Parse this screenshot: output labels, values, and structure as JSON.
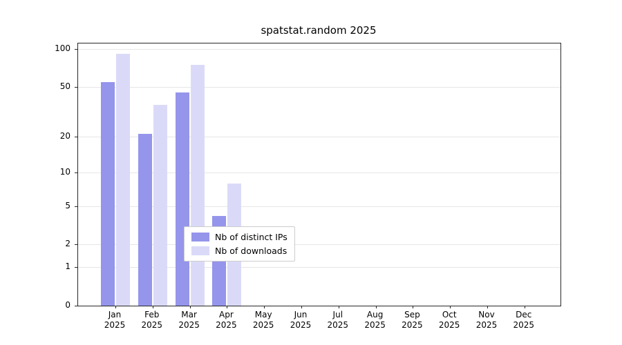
{
  "title": "spatstat.random 2025",
  "chart_data": {
    "type": "bar",
    "title": "spatstat.random 2025",
    "xlabel": "",
    "ylabel": "",
    "scale": "log1p",
    "ylim": [
      0,
      100
    ],
    "yticks": [
      0,
      1,
      2,
      5,
      10,
      20,
      50,
      100
    ],
    "grid": "horizontal",
    "legend_position": "bottom-center",
    "year": "2025",
    "categories": [
      "Jan",
      "Feb",
      "Mar",
      "Apr",
      "May",
      "Jun",
      "Jul",
      "Aug",
      "Sep",
      "Oct",
      "Nov",
      "Dec"
    ],
    "series": [
      {
        "name": "Nb of distinct IPs",
        "color": "#9595ec",
        "values": [
          55,
          21,
          45,
          4,
          0,
          0,
          0,
          0,
          0,
          0,
          0,
          0
        ]
      },
      {
        "name": "Nb of downloads",
        "color": "#dadaf8",
        "values": [
          92,
          36,
          75,
          8,
          0,
          0,
          0,
          0,
          0,
          0,
          0,
          0
        ]
      }
    ]
  }
}
